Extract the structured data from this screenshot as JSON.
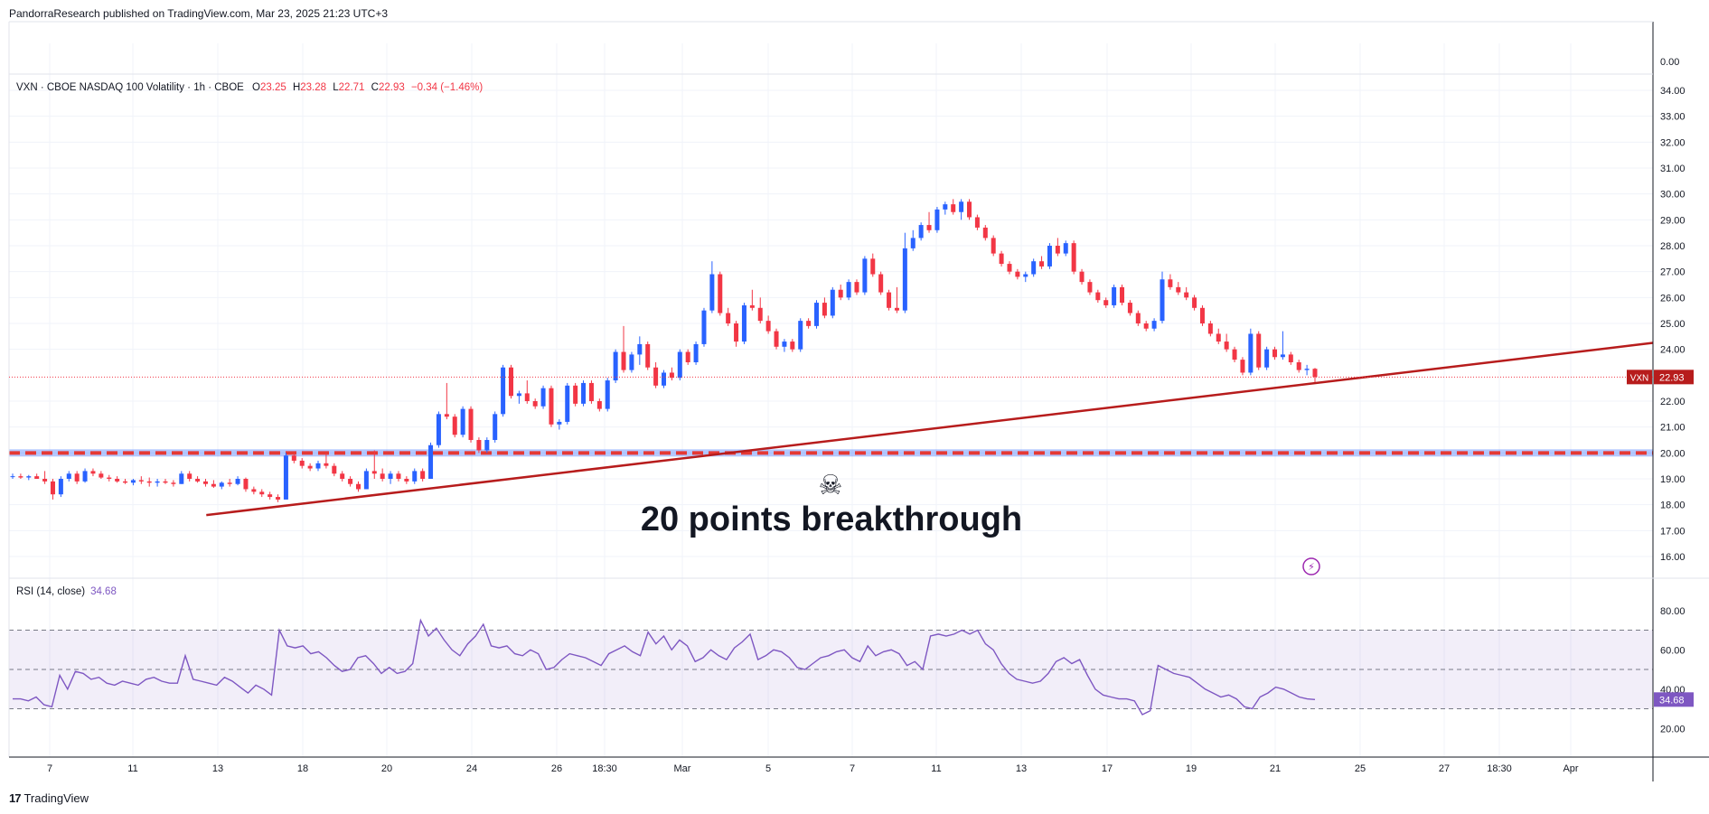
{
  "header": {
    "text": "PandorraResearch published on TradingView.com, Mar 23, 2025 21:23 UTC+3"
  },
  "legend": {
    "symbol": "VXN · CBOE NASDAQ 100 Volatility · 1h · CBOE",
    "open_label": "O",
    "open": "23.25",
    "high_label": "H",
    "high": "23.28",
    "low_label": "L",
    "low": "22.71",
    "close_label": "C",
    "close": "22.93",
    "change": "−0.34 (−1.46%)"
  },
  "rsi_legend": {
    "label": "RSI (14, close)",
    "value": "34.68"
  },
  "annotation": {
    "icon": "skull-crossbones",
    "text": "20 points breakthrough"
  },
  "footer": {
    "logo": "17",
    "brand": "TradingView"
  },
  "colors": {
    "up": "#2962ff",
    "down": "#f23645",
    "trendline": "#b71c1c",
    "rsi": "#7e57c2",
    "price_tag": "#b71c1c"
  },
  "chart_data": [
    {
      "type": "candlestick",
      "title": "",
      "price_axis_ticks": [
        "0.00",
        "34.00",
        "33.00",
        "32.00",
        "31.00",
        "30.00",
        "29.00",
        "28.00",
        "27.00",
        "26.00",
        "25.00",
        "24.00",
        "22.00",
        "21.00",
        "20.00",
        "19.00",
        "18.00",
        "17.00",
        "16.00"
      ],
      "x_ticks": [
        "7",
        "11",
        "13",
        "18",
        "20",
        "24",
        "26",
        "18:30",
        "Mar",
        "5",
        "7",
        "11",
        "13",
        "17",
        "19",
        "21",
        "25",
        "27",
        "18:30",
        "Apr"
      ],
      "ylim": [
        15.5,
        34.5
      ],
      "last_price": {
        "label": "VXN",
        "value": "22.93"
      },
      "horizontal_level": 20.0,
      "trendline": {
        "from": [
          0.12,
          17.6
        ],
        "to": [
          1.0,
          24.25
        ]
      },
      "candles": [
        [
          19.1,
          19.2,
          19.0,
          19.1
        ],
        [
          19.1,
          19.2,
          19.0,
          19.05
        ],
        [
          19.05,
          19.15,
          18.95,
          19.1
        ],
        [
          19.1,
          19.2,
          19.0,
          19.0
        ],
        [
          19.0,
          19.3,
          18.8,
          18.9
        ],
        [
          18.9,
          19.0,
          18.2,
          18.4
        ],
        [
          18.4,
          19.1,
          18.3,
          19.0
        ],
        [
          19.0,
          19.3,
          18.9,
          19.2
        ],
        [
          19.2,
          19.3,
          18.8,
          18.9
        ],
        [
          18.9,
          19.4,
          18.85,
          19.3
        ],
        [
          19.3,
          19.4,
          19.1,
          19.2
        ],
        [
          19.2,
          19.3,
          19.0,
          19.05
        ],
        [
          19.05,
          19.15,
          18.9,
          19.0
        ],
        [
          19.0,
          19.1,
          18.85,
          18.9
        ],
        [
          18.9,
          19.0,
          18.8,
          18.85
        ],
        [
          18.85,
          19.0,
          18.75,
          18.95
        ],
        [
          18.95,
          19.1,
          18.8,
          18.9
        ],
        [
          18.9,
          19.05,
          18.7,
          18.85
        ],
        [
          18.85,
          19.0,
          18.7,
          18.9
        ],
        [
          18.9,
          19.0,
          18.8,
          18.85
        ],
        [
          18.85,
          18.95,
          18.7,
          18.8
        ],
        [
          18.8,
          19.3,
          18.8,
          19.2
        ],
        [
          19.2,
          19.3,
          18.9,
          19.0
        ],
        [
          19.0,
          19.1,
          18.85,
          18.9
        ],
        [
          18.9,
          19.0,
          18.7,
          18.8
        ],
        [
          18.8,
          18.95,
          18.65,
          18.7
        ],
        [
          18.7,
          18.9,
          18.6,
          18.85
        ],
        [
          18.85,
          19.0,
          18.7,
          18.8
        ],
        [
          18.8,
          19.1,
          18.75,
          19.0
        ],
        [
          19.0,
          19.05,
          18.5,
          18.6
        ],
        [
          18.6,
          18.7,
          18.4,
          18.5
        ],
        [
          18.5,
          18.6,
          18.3,
          18.4
        ],
        [
          18.4,
          18.5,
          18.2,
          18.3
        ],
        [
          18.3,
          18.4,
          18.1,
          18.2
        ],
        [
          18.2,
          20.0,
          18.2,
          19.9
        ],
        [
          19.9,
          20.0,
          19.6,
          19.7
        ],
        [
          19.7,
          19.8,
          19.4,
          19.5
        ],
        [
          19.5,
          19.6,
          19.3,
          19.4
        ],
        [
          19.4,
          19.7,
          19.3,
          19.6
        ],
        [
          19.6,
          20.0,
          19.4,
          19.5
        ],
        [
          19.5,
          19.6,
          19.1,
          19.2
        ],
        [
          19.2,
          19.3,
          18.9,
          19.0
        ],
        [
          19.0,
          19.1,
          18.7,
          18.8
        ],
        [
          18.8,
          18.9,
          18.5,
          18.6
        ],
        [
          18.6,
          19.4,
          18.6,
          19.3
        ],
        [
          19.3,
          20.1,
          19.0,
          19.2
        ],
        [
          19.2,
          19.4,
          18.9,
          19.0
        ],
        [
          19.0,
          19.3,
          18.8,
          19.2
        ],
        [
          19.2,
          19.3,
          18.9,
          19.0
        ],
        [
          19.0,
          19.1,
          18.8,
          18.9
        ],
        [
          18.9,
          19.4,
          18.8,
          19.3
        ],
        [
          19.3,
          19.4,
          18.9,
          19.0
        ],
        [
          19.0,
          20.4,
          19.0,
          20.3
        ],
        [
          20.3,
          21.6,
          20.2,
          21.5
        ],
        [
          21.5,
          22.7,
          21.3,
          21.4
        ],
        [
          21.4,
          21.5,
          20.6,
          20.7
        ],
        [
          20.7,
          21.8,
          20.6,
          21.7
        ],
        [
          21.7,
          21.8,
          20.4,
          20.5
        ],
        [
          20.5,
          20.6,
          20.0,
          20.1
        ],
        [
          20.1,
          20.6,
          20.0,
          20.5
        ],
        [
          20.5,
          21.6,
          20.4,
          21.5
        ],
        [
          21.5,
          23.4,
          21.4,
          23.3
        ],
        [
          23.3,
          23.4,
          22.1,
          22.2
        ],
        [
          22.2,
          22.4,
          21.9,
          22.3
        ],
        [
          22.3,
          22.8,
          21.9,
          22.0
        ],
        [
          22.0,
          22.1,
          21.7,
          21.8
        ],
        [
          21.8,
          22.6,
          21.7,
          22.5
        ],
        [
          22.5,
          22.6,
          21.0,
          21.1
        ],
        [
          21.1,
          21.3,
          20.9,
          21.2
        ],
        [
          21.2,
          22.7,
          21.1,
          22.6
        ],
        [
          22.6,
          22.7,
          21.8,
          21.9
        ],
        [
          21.9,
          22.8,
          21.8,
          22.7
        ],
        [
          22.7,
          22.8,
          21.9,
          22.0
        ],
        [
          22.0,
          22.1,
          21.6,
          21.7
        ],
        [
          21.7,
          22.9,
          21.6,
          22.8
        ],
        [
          22.8,
          24.0,
          22.7,
          23.9
        ],
        [
          23.9,
          24.9,
          23.1,
          23.2
        ],
        [
          23.2,
          23.9,
          23.1,
          23.8
        ],
        [
          23.8,
          24.5,
          23.4,
          24.2
        ],
        [
          24.2,
          24.3,
          23.2,
          23.3
        ],
        [
          23.3,
          23.5,
          22.5,
          22.6
        ],
        [
          22.6,
          23.2,
          22.5,
          23.1
        ],
        [
          23.1,
          23.3,
          22.8,
          22.9
        ],
        [
          22.9,
          24.0,
          22.8,
          23.9
        ],
        [
          23.9,
          24.0,
          23.4,
          23.5
        ],
        [
          23.5,
          24.3,
          23.4,
          24.2
        ],
        [
          24.2,
          25.6,
          24.1,
          25.5
        ],
        [
          25.5,
          27.4,
          25.4,
          26.9
        ],
        [
          26.9,
          27.0,
          25.3,
          25.4
        ],
        [
          25.4,
          25.6,
          24.9,
          25.0
        ],
        [
          25.0,
          25.1,
          24.1,
          24.3
        ],
        [
          24.3,
          25.8,
          24.2,
          25.7
        ],
        [
          25.7,
          26.3,
          25.5,
          25.6
        ],
        [
          25.6,
          26.0,
          25.0,
          25.1
        ],
        [
          25.1,
          25.3,
          24.6,
          24.7
        ],
        [
          24.7,
          24.8,
          24.0,
          24.1
        ],
        [
          24.1,
          24.4,
          23.9,
          24.3
        ],
        [
          24.3,
          24.4,
          23.9,
          24.0
        ],
        [
          24.0,
          25.2,
          23.9,
          25.1
        ],
        [
          25.1,
          25.2,
          24.8,
          24.9
        ],
        [
          24.9,
          25.9,
          24.8,
          25.8
        ],
        [
          25.8,
          26.0,
          25.2,
          25.3
        ],
        [
          25.3,
          26.4,
          25.2,
          26.3
        ],
        [
          26.3,
          26.5,
          25.9,
          26.0
        ],
        [
          26.0,
          26.7,
          25.9,
          26.6
        ],
        [
          26.6,
          26.7,
          26.1,
          26.2
        ],
        [
          26.2,
          27.6,
          26.1,
          27.5
        ],
        [
          27.5,
          27.7,
          26.8,
          26.9
        ],
        [
          26.9,
          27.0,
          26.1,
          26.2
        ],
        [
          26.2,
          26.3,
          25.5,
          25.6
        ],
        [
          25.6,
          26.4,
          25.4,
          25.5
        ],
        [
          25.5,
          28.5,
          25.4,
          27.9
        ],
        [
          27.9,
          28.6,
          27.8,
          28.3
        ],
        [
          28.3,
          28.9,
          28.2,
          28.8
        ],
        [
          28.8,
          29.3,
          28.5,
          28.6
        ],
        [
          28.6,
          29.5,
          28.5,
          29.4
        ],
        [
          29.4,
          29.7,
          29.2,
          29.6
        ],
        [
          29.6,
          29.8,
          29.2,
          29.3
        ],
        [
          29.3,
          29.8,
          29.0,
          29.7
        ],
        [
          29.7,
          29.8,
          29.0,
          29.1
        ],
        [
          29.1,
          29.2,
          28.6,
          28.7
        ],
        [
          28.7,
          28.8,
          28.2,
          28.3
        ],
        [
          28.3,
          28.4,
          27.6,
          27.7
        ],
        [
          27.7,
          27.8,
          27.2,
          27.3
        ],
        [
          27.3,
          27.4,
          26.9,
          27.0
        ],
        [
          27.0,
          27.1,
          26.7,
          26.8
        ],
        [
          26.8,
          27.0,
          26.6,
          26.9
        ],
        [
          26.9,
          27.5,
          26.8,
          27.4
        ],
        [
          27.4,
          27.6,
          27.1,
          27.2
        ],
        [
          27.2,
          28.1,
          27.1,
          28.0
        ],
        [
          28.0,
          28.3,
          27.6,
          27.7
        ],
        [
          27.7,
          28.2,
          27.6,
          28.1
        ],
        [
          28.1,
          28.2,
          26.9,
          27.0
        ],
        [
          27.0,
          27.1,
          26.5,
          26.6
        ],
        [
          26.6,
          26.7,
          26.1,
          26.2
        ],
        [
          26.2,
          26.3,
          25.8,
          25.9
        ],
        [
          25.9,
          26.0,
          25.6,
          25.7
        ],
        [
          25.7,
          26.5,
          25.6,
          26.4
        ],
        [
          26.4,
          26.5,
          25.7,
          25.8
        ],
        [
          25.8,
          25.9,
          25.3,
          25.4
        ],
        [
          25.4,
          25.5,
          24.9,
          25.0
        ],
        [
          25.0,
          25.1,
          24.7,
          24.8
        ],
        [
          24.8,
          25.2,
          24.7,
          25.1
        ],
        [
          25.1,
          27.0,
          25.0,
          26.7
        ],
        [
          26.7,
          26.9,
          26.3,
          26.4
        ],
        [
          26.4,
          26.6,
          26.1,
          26.2
        ],
        [
          26.2,
          26.4,
          25.9,
          26.0
        ],
        [
          26.0,
          26.1,
          25.5,
          25.6
        ],
        [
          25.6,
          25.7,
          24.9,
          25.0
        ],
        [
          25.0,
          25.1,
          24.5,
          24.6
        ],
        [
          24.6,
          24.8,
          24.2,
          24.3
        ],
        [
          24.3,
          24.6,
          23.9,
          24.0
        ],
        [
          24.0,
          24.1,
          23.5,
          23.6
        ],
        [
          23.6,
          23.7,
          23.0,
          23.1
        ],
        [
          23.1,
          24.8,
          23.0,
          24.6
        ],
        [
          24.6,
          24.7,
          23.2,
          23.3
        ],
        [
          23.3,
          24.1,
          23.2,
          24.0
        ],
        [
          24.0,
          24.1,
          23.6,
          23.7
        ],
        [
          23.7,
          24.7,
          23.6,
          23.8
        ],
        [
          23.8,
          23.9,
          23.4,
          23.5
        ],
        [
          23.5,
          23.6,
          23.1,
          23.2
        ],
        [
          23.2,
          23.4,
          23.0,
          23.25
        ],
        [
          23.25,
          23.28,
          22.71,
          22.93
        ]
      ]
    },
    {
      "type": "line",
      "title": "",
      "name": "RSI (14, close)",
      "ylim": [
        10,
        90
      ],
      "y_ticks": [
        "80.00",
        "60.00",
        "40.00",
        "20.00"
      ],
      "bands": {
        "upper": 70,
        "middle": 50,
        "lower": 30
      },
      "last_value": "34.68",
      "values": [
        35,
        35,
        34,
        36,
        32,
        31,
        47,
        40,
        49,
        48,
        45,
        46,
        43,
        42,
        44,
        43,
        42,
        45,
        46,
        44,
        43,
        43,
        57,
        45,
        44,
        43,
        42,
        46,
        44,
        41,
        38,
        42,
        40,
        37,
        70,
        62,
        61,
        62,
        58,
        59,
        56,
        52,
        49,
        50,
        56,
        57,
        53,
        48,
        51,
        48,
        49,
        53,
        75,
        67,
        71,
        65,
        60,
        57,
        63,
        67,
        73,
        62,
        61,
        62,
        58,
        57,
        60,
        58,
        50,
        51,
        55,
        58,
        57,
        56,
        54,
        52,
        58,
        60,
        62,
        59,
        57,
        69,
        63,
        67,
        60,
        65,
        62,
        54,
        56,
        60,
        57,
        55,
        61,
        64,
        68,
        55,
        57,
        60,
        59,
        56,
        51,
        50,
        53,
        56,
        57,
        59,
        60,
        56,
        54,
        62,
        57,
        59,
        60,
        58,
        52,
        54,
        50,
        67,
        68,
        67,
        68,
        70,
        68,
        70,
        63,
        60,
        53,
        48,
        45,
        44,
        43,
        44,
        48,
        54,
        56,
        53,
        55,
        47,
        40,
        37,
        36,
        35,
        35,
        34,
        27,
        29,
        52,
        50,
        48,
        47,
        46,
        43,
        40,
        38,
        36,
        37,
        35,
        31,
        30,
        36,
        38,
        41,
        40,
        38,
        36,
        35,
        34.68
      ]
    }
  ]
}
